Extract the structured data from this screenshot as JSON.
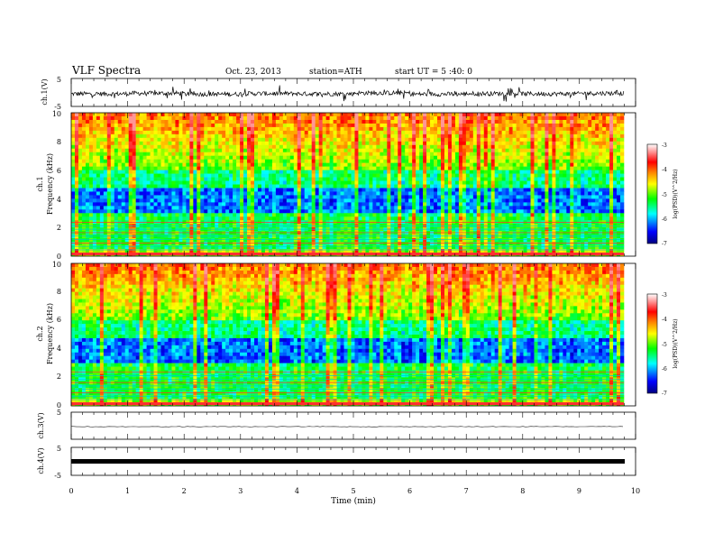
{
  "header": {
    "title": "VLF Spectra",
    "date": "Oct. 23, 2013",
    "station": "station=ATH",
    "start": "start UT = 5 :40: 0"
  },
  "colorbar": {
    "label": "log(PSD)(V^2/Hz)",
    "ticks": [
      "-3",
      "-4",
      "-5",
      "-6",
      "-7"
    ],
    "colors": [
      "#000080",
      "#0000ff",
      "#00ffff",
      "#00ff00",
      "#ffff00",
      "#ff8000",
      "#ff0000",
      "#ff9090",
      "#ffffff"
    ]
  },
  "chart_data": [
    {
      "type": "line",
      "ylabel": "ch.1(V)",
      "ylim": [
        -5,
        5
      ],
      "yticks": [
        "5",
        "-5"
      ],
      "xlim": [
        0,
        10
      ],
      "series": [
        {
          "values": [
            -0.5,
            -0.3,
            -0.6,
            -0.4,
            -0.5,
            -0.2,
            -0.6,
            -0.4,
            -0.5,
            -0.3
          ]
        }
      ]
    },
    {
      "type": "heatmap",
      "ylabel": "ch.1",
      "ylabel2": "Frequency (kHz)",
      "ylim": [
        0,
        10
      ],
      "yticks": [
        "0",
        "2",
        "4",
        "6",
        "8",
        "10"
      ],
      "xlim": [
        0,
        10
      ],
      "zlim": [
        -7,
        -3
      ],
      "zlabel": "log(PSD)(V^2/Hz)"
    },
    {
      "type": "heatmap",
      "ylabel": "ch.2",
      "ylabel2": "Frequency (kHz)",
      "ylim": [
        0,
        10
      ],
      "yticks": [
        "0",
        "2",
        "4",
        "6",
        "8",
        "10"
      ],
      "xlim": [
        0,
        10
      ],
      "zlim": [
        -7,
        -3
      ],
      "zlabel": "log(PSD)(V^2/Hz)"
    },
    {
      "type": "line",
      "ylabel": "ch.3(V)",
      "ylim": [
        -5,
        5
      ],
      "yticks": [
        "5",
        "-5"
      ],
      "xlim": [
        0,
        10
      ],
      "series": [
        {
          "values": [
            0,
            0,
            0,
            0,
            0,
            0,
            0,
            0,
            0,
            0
          ]
        }
      ]
    },
    {
      "type": "line",
      "ylabel": "ch.4(V)",
      "ylim": [
        -5,
        5
      ],
      "yticks": [
        "5",
        "-5"
      ],
      "xlim": [
        0,
        10
      ],
      "xlabel": "Time (min)",
      "xticks": [
        "0",
        "1",
        "2",
        "3",
        "4",
        "5",
        "6",
        "7",
        "8",
        "9",
        "10"
      ],
      "series": [
        {
          "values": [
            -0.5,
            -0.5,
            -0.5,
            -0.5,
            -0.5,
            -0.5,
            -0.5,
            -0.5,
            -0.5,
            -0.5
          ]
        }
      ]
    }
  ]
}
